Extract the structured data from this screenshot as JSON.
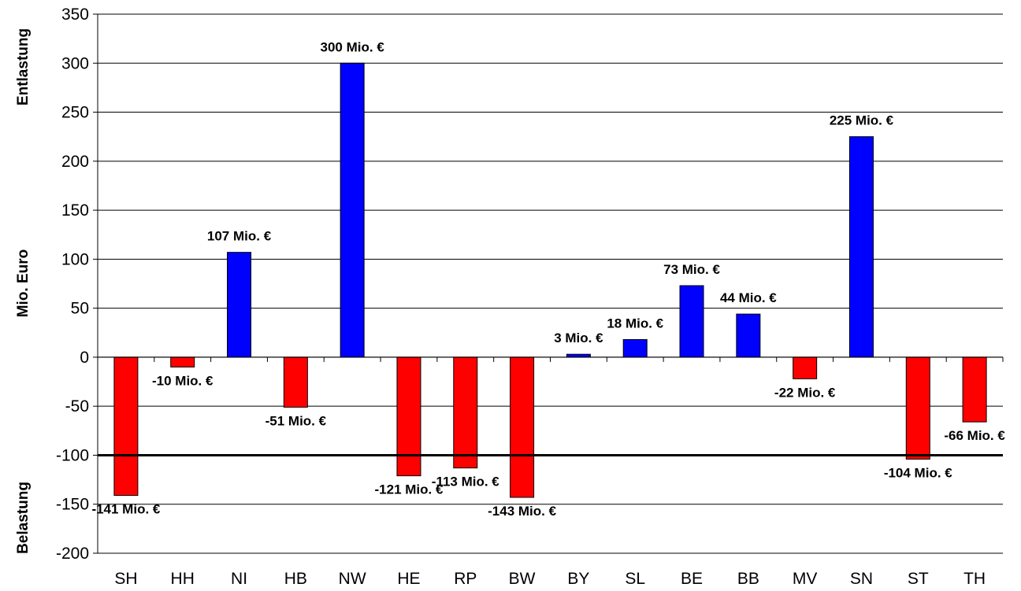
{
  "chart_data": {
    "type": "bar",
    "ylabel": "Mio. Euro",
    "ylabel_top": "Entlastung",
    "ylabel_bottom": "Belastung",
    "ylim": [
      -200,
      350
    ],
    "yticks": [
      350,
      300,
      250,
      200,
      150,
      100,
      50,
      0,
      -50,
      -100,
      -150,
      -200
    ],
    "grid": true,
    "reference_line": -100,
    "categories": [
      "SH",
      "HH",
      "NI",
      "HB",
      "NW",
      "HE",
      "RP",
      "BW",
      "BY",
      "SL",
      "BE",
      "BB",
      "MV",
      "SN",
      "ST",
      "TH"
    ],
    "values": [
      -141,
      -10,
      107,
      -51,
      300,
      -121,
      -113,
      -143,
      3,
      18,
      73,
      44,
      -22,
      225,
      -104,
      -66
    ],
    "data_labels": [
      "-141 Mio. €",
      "-10 Mio. €",
      "107 Mio. €",
      "-51 Mio. €",
      "300 Mio. €",
      "-121 Mio. €",
      "-113 Mio. €",
      "-143 Mio. €",
      "3 Mio. €",
      "18 Mio. €",
      "73 Mio. €",
      "44 Mio. €",
      "-22 Mio. €",
      "225 Mio. €",
      "-104 Mio. €",
      "-66 Mio. €"
    ],
    "colors": {
      "positive": "#0000ff",
      "negative": "#ff0000"
    }
  }
}
